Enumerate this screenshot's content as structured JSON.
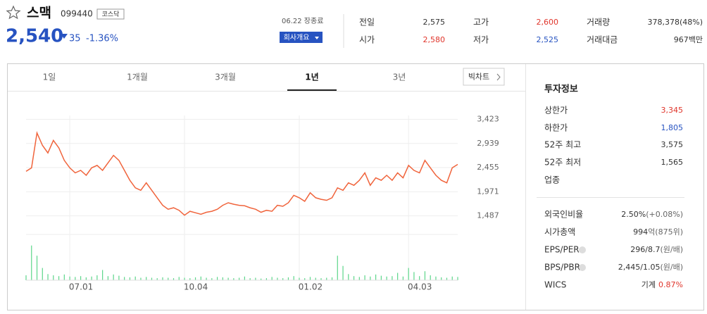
{
  "header": {
    "name": "스맥",
    "code": "099440",
    "market": "코스닥",
    "price": "2,540",
    "change": "35",
    "rate": "-1.36%",
    "date": "06.22 장종료",
    "button": "회사개요",
    "stats": [
      [
        "전일",
        "2,575",
        "#333"
      ],
      [
        "고가",
        "2,600",
        "#e0352b"
      ],
      [
        "거래량",
        "378,378(48%)",
        "#333"
      ],
      [
        "시가",
        "2,580",
        "#e0352b"
      ],
      [
        "저가",
        "2,525",
        "#2753c1"
      ],
      [
        "거래대금",
        "967백만",
        "#333"
      ]
    ]
  },
  "tabs": {
    "items": [
      "1일",
      "1개월",
      "3개월",
      "1년",
      "3년"
    ],
    "active": 3,
    "big_chart": "빅차트"
  },
  "chart_data": {
    "type": "line",
    "categories": [
      null,
      null,
      null,
      null,
      null,
      null,
      null,
      null,
      "07.01",
      null,
      null,
      null,
      null,
      null,
      null,
      null,
      null,
      null,
      null,
      null,
      null,
      null,
      null,
      null,
      null,
      null,
      null,
      null,
      null,
      "10.04",
      null,
      null,
      null,
      null,
      null,
      null,
      null,
      null,
      null,
      null,
      null,
      null,
      null,
      null,
      null,
      null,
      null,
      null,
      null,
      null,
      "01.02",
      null,
      null,
      null,
      null,
      null,
      null,
      null,
      null,
      null,
      null,
      null,
      null,
      null,
      null,
      null,
      null,
      null,
      null,
      null,
      "04.03",
      null,
      null,
      null,
      null,
      null,
      null,
      null,
      null,
      null
    ],
    "series": [
      {
        "color": "#f0643c",
        "values": [
          2380,
          2450,
          3150,
          2900,
          2750,
          3000,
          2850,
          2600,
          2450,
          2350,
          2400,
          2300,
          2450,
          2500,
          2400,
          2550,
          2700,
          2600,
          2400,
          2200,
          2050,
          2000,
          2150,
          2000,
          1850,
          1700,
          1620,
          1650,
          1600,
          1500,
          1580,
          1550,
          1520,
          1560,
          1580,
          1620,
          1700,
          1750,
          1720,
          1700,
          1690,
          1650,
          1620,
          1560,
          1600,
          1580,
          1700,
          1680,
          1750,
          1900,
          1850,
          1780,
          1950,
          1850,
          1820,
          1800,
          1850,
          2050,
          2000,
          2150,
          2100,
          2200,
          2350,
          2100,
          2250,
          2200,
          2300,
          2200,
          2350,
          2250,
          2500,
          2400,
          2350,
          2600,
          2450,
          2300,
          2200,
          2150,
          2450,
          2520
        ]
      }
    ],
    "volume": {
      "color": "#5cd68a",
      "values": [
        12,
        85,
        60,
        30,
        15,
        12,
        10,
        14,
        9,
        8,
        10,
        7,
        9,
        12,
        25,
        10,
        14,
        11,
        8,
        7,
        9,
        6,
        8,
        6,
        5,
        7,
        6,
        5,
        8,
        6,
        5,
        7,
        9,
        6,
        5,
        8,
        7,
        6,
        5,
        6,
        9,
        5,
        6,
        4,
        5,
        8,
        6,
        5,
        7,
        10,
        6,
        5,
        8,
        6,
        5,
        6,
        7,
        60,
        35,
        15,
        10,
        8,
        12,
        9,
        14,
        11,
        9,
        10,
        18,
        9,
        30,
        20,
        10,
        22,
        12,
        9,
        7,
        6,
        9,
        8
      ],
      "ylim": [
        0,
        100
      ]
    },
    "ylim": [
      1200,
      3500
    ],
    "yticks": [
      {
        "value": 3423,
        "label": "3,423"
      },
      {
        "value": 2939,
        "label": "2,939"
      },
      {
        "value": 2455,
        "label": "2,455"
      },
      {
        "value": 1971,
        "label": "1,971"
      },
      {
        "value": 1487,
        "label": "1,487"
      }
    ],
    "grid": true
  },
  "info": {
    "title": "투자정보",
    "rows": [
      [
        "상한가",
        "3,345",
        "#e0352b"
      ],
      [
        "하한가",
        "1,805",
        "#2753c1"
      ],
      [
        "52주 최고",
        "3,575",
        "#333"
      ],
      [
        "52주 최저",
        "1,565",
        "#333"
      ],
      [
        "업종",
        "",
        "#333"
      ]
    ],
    "rows2": [
      [
        "외국인비율",
        "2.50%",
        "(+0.08%)"
      ],
      [
        "시가총액",
        "994",
        "억(875위)"
      ],
      [
        "EPS/PER",
        "296/8.7",
        "(원/배)"
      ],
      [
        "BPS/PBR",
        "2,445/1.05",
        "(원/배)"
      ],
      [
        "WICS",
        "기계",
        "0.87%"
      ]
    ]
  }
}
